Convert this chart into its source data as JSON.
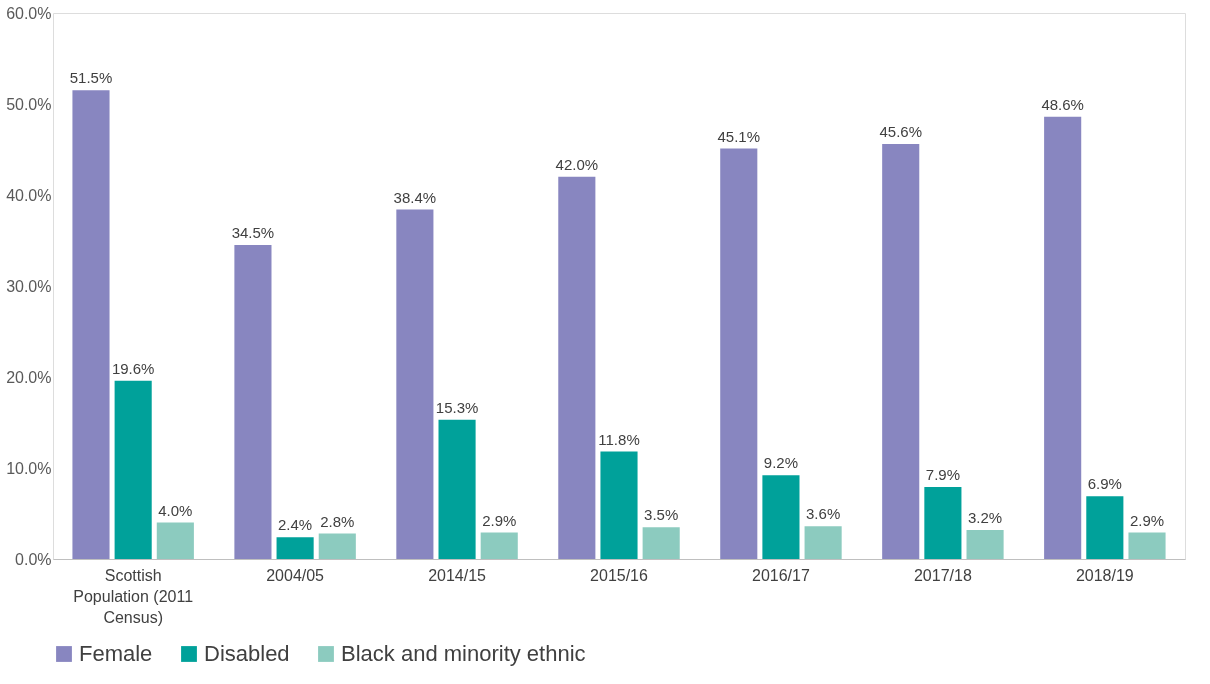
{
  "chart_data": {
    "type": "bar",
    "categories": [
      "Scottish Population (2011 Census)",
      "2004/05",
      "2014/15",
      "2015/16",
      "2016/17",
      "2017/18",
      "2018/19"
    ],
    "series": [
      {
        "name": "Female",
        "color": "#8886c0",
        "values": [
          51.5,
          34.5,
          38.4,
          42.0,
          45.1,
          45.6,
          48.6
        ],
        "value_labels": [
          "51.5%",
          "34.5%",
          "38.4%",
          "42.0%",
          "45.1%",
          "45.6%",
          "48.6%"
        ]
      },
      {
        "name": "Disabled",
        "color": "#00a19a",
        "values": [
          19.6,
          2.4,
          15.3,
          11.8,
          9.2,
          7.9,
          6.9
        ],
        "value_labels": [
          "19.6%",
          "2.4%",
          "15.3%",
          "11.8%",
          "9.2%",
          "7.9%",
          "6.9%"
        ]
      },
      {
        "name": "Black and minority ethnic",
        "color": "#8ccbbf",
        "values": [
          4.0,
          2.8,
          2.9,
          3.5,
          3.6,
          3.2,
          2.9
        ],
        "value_labels": [
          "4.0%",
          "2.8%",
          "2.9%",
          "3.5%",
          "3.6%",
          "3.2%",
          "2.9%"
        ]
      }
    ],
    "ylim": [
      0,
      60
    ],
    "yticks": [
      {
        "value": 0,
        "label": "0.0%"
      },
      {
        "value": 10,
        "label": "10.0%"
      },
      {
        "value": 20,
        "label": "20.0%"
      },
      {
        "value": 30,
        "label": "30.0%"
      },
      {
        "value": 40,
        "label": "40.0%"
      },
      {
        "value": 50,
        "label": "50.0%"
      },
      {
        "value": 60,
        "label": "60.0%"
      }
    ],
    "grid": false,
    "legend": "bottom"
  }
}
